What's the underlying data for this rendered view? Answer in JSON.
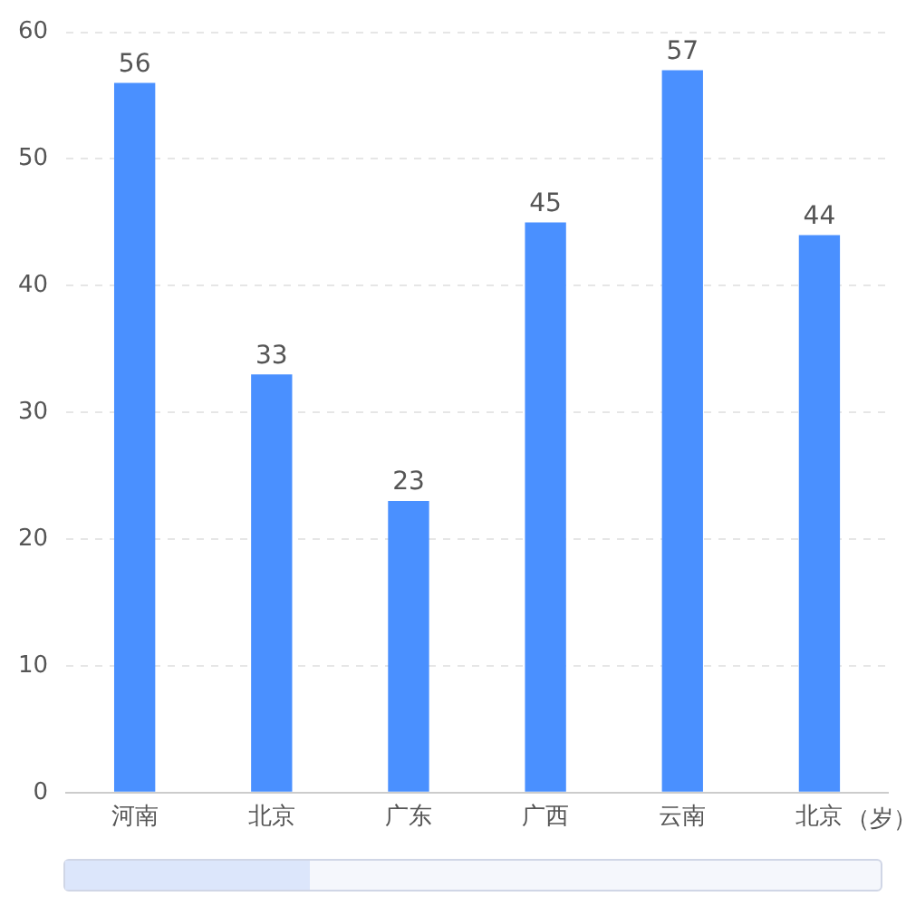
{
  "chart_data": {
    "type": "bar",
    "categories": [
      "河南",
      "北京",
      "广东",
      "广西",
      "云南",
      "北京"
    ],
    "xlabel": "（岁）",
    "series": [
      {
        "color": "#4a90ff",
        "values": [
          56,
          33,
          23,
          45,
          57,
          44
        ]
      }
    ],
    "ylim": [
      0,
      60
    ],
    "yticks": [
      0,
      10,
      20,
      30,
      40,
      50,
      60
    ],
    "grid": "y",
    "legend": false,
    "data_labels": true
  }
}
